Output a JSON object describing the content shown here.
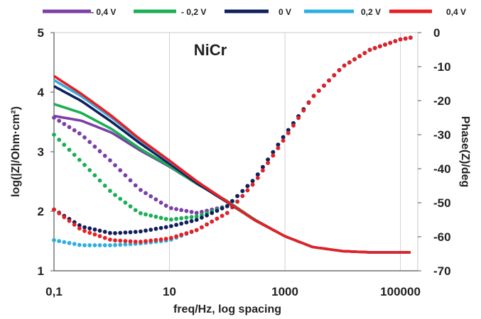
{
  "chart_data": {
    "type": "line",
    "title": "NiCr",
    "xlabel": "freq/Hz, log spacing",
    "ylabel_left": "log(|Z|/Ohm·cm²)",
    "ylabel_right": "Phase(Z)/deg",
    "x_scale": "log",
    "xlim": [
      0.1,
      200000
    ],
    "ylim_left": [
      1,
      5
    ],
    "ylim_right": [
      -70,
      0
    ],
    "x_tick_labels": [
      "0,1",
      "10",
      "1000",
      "100000"
    ],
    "x_tick_values": [
      0.1,
      10,
      1000,
      100000
    ],
    "y_left_ticks": [
      "1",
      "2",
      "3",
      "4",
      "5"
    ],
    "y_right_ticks": [
      "0",
      "-10",
      "-20",
      "-30",
      "-40",
      "-50",
      "-60",
      "-70"
    ],
    "grid": "vertical",
    "legend_position": "top",
    "legend": [
      {
        "label": "- 0,4 V",
        "color": "#7B3FA8"
      },
      {
        "label": "- 0,2 V",
        "color": "#1AAF54"
      },
      {
        "label": "0 V",
        "color": "#0F1F5C"
      },
      {
        "label": "0,2 V",
        "color": "#2BB0E0"
      },
      {
        "label": "0,4 V",
        "color": "#E81E24"
      }
    ],
    "series": [
      {
        "name": "- 0,4 V",
        "color": "#7B3FA8",
        "x": [
          0.1,
          0.3,
          1,
          3,
          10,
          30,
          100,
          300,
          1000,
          3000,
          10000,
          30000,
          100000,
          150000
        ],
        "log_z": [
          3.6,
          3.52,
          3.32,
          3.03,
          2.75,
          2.46,
          2.17,
          1.86,
          1.58,
          1.4,
          1.33,
          1.31,
          1.31,
          1.31
        ],
        "phase": [
          -25,
          -30,
          -38,
          -46,
          -51.5,
          -53,
          -51,
          -43,
          -30,
          -19,
          -10,
          -5,
          -2,
          -1.5
        ]
      },
      {
        "name": "- 0,2 V",
        "color": "#1AAF54",
        "x": [
          0.1,
          0.3,
          1,
          3,
          10,
          30,
          100,
          300,
          1000,
          3000,
          10000,
          30000,
          100000,
          150000
        ],
        "log_z": [
          3.8,
          3.65,
          3.38,
          3.06,
          2.76,
          2.46,
          2.17,
          1.86,
          1.58,
          1.4,
          1.33,
          1.31,
          1.31,
          1.31
        ],
        "phase": [
          -30,
          -38,
          -47,
          -53,
          -55,
          -54,
          -51,
          -43,
          -30,
          -19,
          -10,
          -5,
          -2,
          -1.5
        ]
      },
      {
        "name": "0 V",
        "color": "#0F1F5C",
        "x": [
          0.1,
          0.3,
          1,
          3,
          10,
          30,
          100,
          300,
          1000,
          3000,
          10000,
          30000,
          100000,
          150000
        ],
        "log_z": [
          4.1,
          3.85,
          3.5,
          3.15,
          2.8,
          2.47,
          2.15,
          1.85,
          1.58,
          1.4,
          1.33,
          1.31,
          1.31,
          1.31
        ],
        "phase": [
          -52,
          -57,
          -59,
          -58.5,
          -57,
          -55,
          -51,
          -43,
          -30,
          -19,
          -10,
          -5,
          -2,
          -1.5
        ]
      },
      {
        "name": "0,2 V",
        "color": "#2BB0E0",
        "x": [
          0.1,
          0.3,
          1,
          3,
          10,
          30,
          100,
          300,
          1000,
          3000,
          10000,
          30000,
          100000,
          150000
        ],
        "log_z": [
          4.2,
          3.93,
          3.57,
          3.2,
          2.84,
          2.5,
          2.16,
          1.85,
          1.58,
          1.4,
          1.33,
          1.31,
          1.31,
          1.31
        ],
        "phase": [
          -61,
          -62.5,
          -62.5,
          -62,
          -61,
          -58,
          -53,
          -44,
          -31,
          -19,
          -10,
          -5,
          -2,
          -1.5
        ]
      },
      {
        "name": "0,4 V",
        "color": "#E81E24",
        "x": [
          0.1,
          0.3,
          1,
          3,
          10,
          30,
          100,
          300,
          1000,
          3000,
          10000,
          30000,
          100000,
          150000
        ],
        "log_z": [
          4.27,
          3.97,
          3.6,
          3.22,
          2.85,
          2.5,
          2.16,
          1.85,
          1.58,
          1.4,
          1.33,
          1.31,
          1.31,
          1.31
        ],
        "phase": [
          -52,
          -58,
          -61,
          -61.5,
          -60.5,
          -58,
          -53,
          -44,
          -31,
          -19,
          -10,
          -5,
          -2,
          -1.5
        ]
      }
    ]
  }
}
